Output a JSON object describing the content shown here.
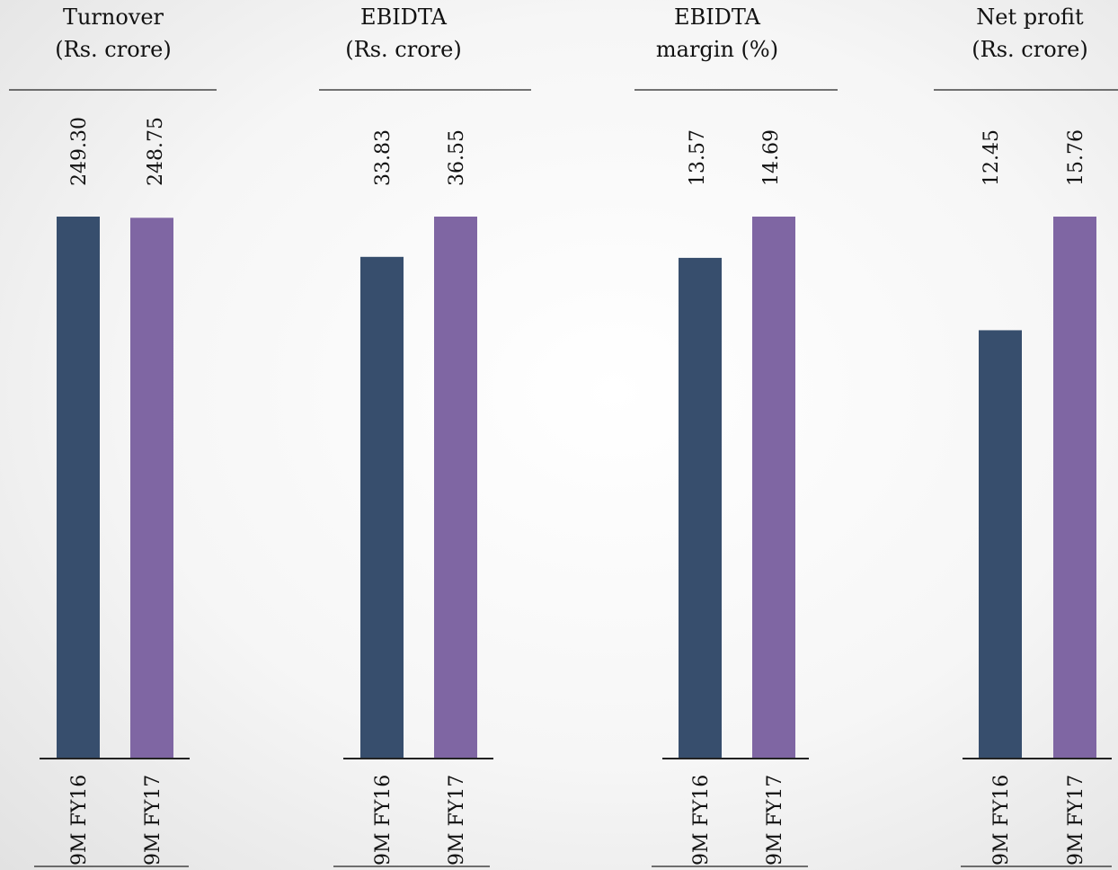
{
  "colors": {
    "fy16": "#374e6d",
    "fy17": "#7f66a3",
    "rule": "#222222"
  },
  "chart_data": [
    {
      "type": "bar",
      "title_line1": "Turnover",
      "title_line2": "(Rs. crore)",
      "categories": [
        "9M FY16",
        "9M FY17"
      ],
      "values": [
        249.3,
        248.75
      ],
      "value_labels": [
        "249.30",
        "248.75"
      ]
    },
    {
      "type": "bar",
      "title_line1": "EBIDTA",
      "title_line2": "(Rs. crore)",
      "categories": [
        "9M FY16",
        "9M FY17"
      ],
      "values": [
        33.83,
        36.55
      ],
      "value_labels": [
        "33.83",
        "36.55"
      ]
    },
    {
      "type": "bar",
      "title_line1": "EBIDTA",
      "title_line2": "margin (%)",
      "categories": [
        "9M  FY16",
        "9M FY17"
      ],
      "values": [
        13.57,
        14.69
      ],
      "value_labels": [
        "13.57",
        "14.69"
      ]
    },
    {
      "type": "bar",
      "title_line1": "Net profit",
      "title_line2": "(Rs. crore)",
      "categories": [
        "9M  FY16",
        "9M FY17"
      ],
      "values": [
        12.45,
        15.76
      ],
      "value_labels": [
        "12.45",
        "15.76"
      ]
    }
  ]
}
